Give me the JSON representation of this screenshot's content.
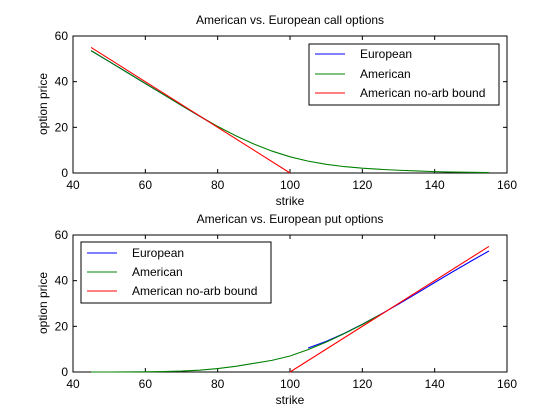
{
  "figure": {
    "background": "#ffffff"
  },
  "chart_data": [
    {
      "type": "line",
      "title": "American vs. European call options",
      "xlabel": "strike",
      "ylabel": "option price",
      "xlim": [
        40,
        160
      ],
      "ylim": [
        0,
        60
      ],
      "xticks": [
        40,
        60,
        80,
        100,
        120,
        140,
        160
      ],
      "yticks": [
        0,
        20,
        40,
        60
      ],
      "grid": false,
      "legend_position": "top-right",
      "series": [
        {
          "name": "European",
          "color": "#0000ff",
          "x": [
            45,
            50,
            55,
            60,
            65,
            70,
            75,
            78
          ],
          "y": [
            53.6,
            48.8,
            44.0,
            39.2,
            34.4,
            29.6,
            24.9,
            22.1
          ]
        },
        {
          "name": "American",
          "color": "#008000",
          "x": [
            45,
            50,
            55,
            60,
            65,
            70,
            75,
            80,
            85,
            90,
            95,
            100,
            105,
            110,
            115,
            120,
            125,
            130,
            135,
            140,
            145,
            150,
            155
          ],
          "y": [
            53.6,
            48.8,
            44.0,
            39.2,
            34.4,
            29.6,
            24.9,
            20.4,
            16.3,
            12.7,
            9.6,
            7.1,
            5.2,
            3.8,
            2.8,
            2.1,
            1.6,
            1.2,
            0.9,
            0.6,
            0.4,
            0.3,
            0.2
          ]
        },
        {
          "name": "American no-arb bound",
          "color": "#ff0000",
          "x": [
            45,
            100
          ],
          "y": [
            55,
            0
          ]
        }
      ]
    },
    {
      "type": "line",
      "title": "American vs. European put options",
      "xlabel": "strike",
      "ylabel": "option price",
      "xlim": [
        40,
        160
      ],
      "ylim": [
        0,
        60
      ],
      "xticks": [
        40,
        60,
        80,
        100,
        120,
        140,
        160
      ],
      "yticks": [
        0,
        20,
        40,
        60
      ],
      "grid": false,
      "legend_position": "top-left",
      "series": [
        {
          "name": "European",
          "color": "#0000ff",
          "x": [
            105,
            110,
            115,
            120,
            125,
            130,
            135,
            140,
            145,
            150,
            155
          ],
          "y": [
            10.5,
            13.4,
            16.9,
            20.9,
            25.2,
            29.7,
            34.4,
            39.2,
            43.9,
            48.5,
            53.0
          ]
        },
        {
          "name": "American",
          "color": "#008000",
          "x": [
            45,
            50,
            55,
            60,
            65,
            70,
            75,
            80,
            85,
            90,
            95,
            100,
            105,
            110,
            115,
            120,
            125
          ],
          "y": [
            0.0,
            0.0,
            0.05,
            0.1,
            0.2,
            0.4,
            0.8,
            1.5,
            2.5,
            3.8,
            5.1,
            7.0,
            9.8,
            13.1,
            16.8,
            20.8,
            25.2
          ]
        },
        {
          "name": "American no-arb bound",
          "color": "#ff0000",
          "x": [
            100,
            155
          ],
          "y": [
            0,
            55
          ]
        }
      ]
    }
  ]
}
